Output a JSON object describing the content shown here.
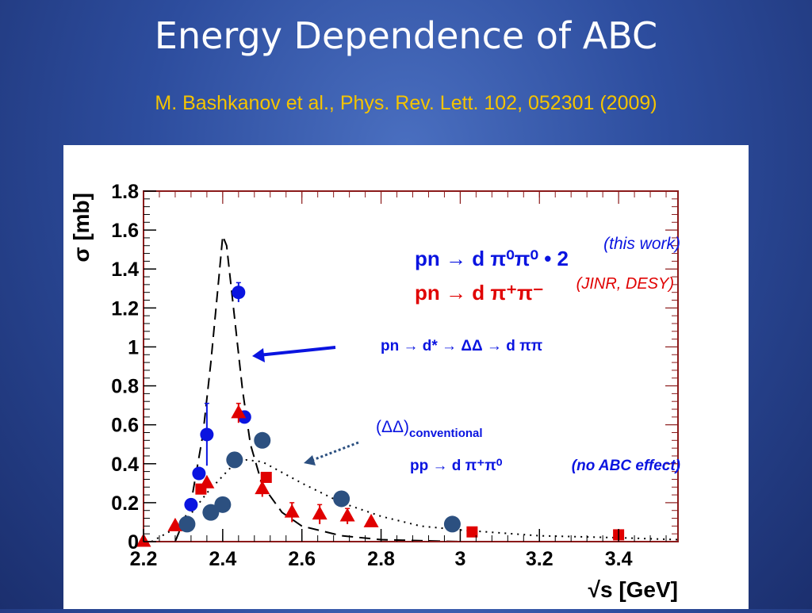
{
  "slide": {
    "title": "Energy Dependence of ABC",
    "subtitle": "M. Bashkanov et al., Phys. Rev. Lett. 102, 052301 (2009)"
  },
  "colors": {
    "background": "#2d4d9e",
    "title_text": "#ffffff",
    "subtitle_text": "#f5c400",
    "this_work": "#0a14e0",
    "jinr_desy": "#e00000",
    "conventional": "#2c5080",
    "frame": "#8b1a1a",
    "arrow": "#0a14e0",
    "dotted_arrow": "#2c5080"
  },
  "chart_data": {
    "type": "scatter",
    "xlabel": "√s [GeV]",
    "ylabel": "σ [mb]",
    "xlim": [
      2.2,
      3.55
    ],
    "ylim": [
      0,
      1.8
    ],
    "x_ticks": [
      "2.2",
      "2.4",
      "2.6",
      "2.8",
      "3",
      "3.2",
      "3.4"
    ],
    "y_ticks": [
      "0",
      "0.2",
      "0.4",
      "0.6",
      "0.8",
      "1",
      "1.2",
      "1.4",
      "1.6",
      "1.8"
    ],
    "series": [
      {
        "name": "pn → d π⁰π⁰ • 2",
        "note": "(this work)",
        "marker": "circle",
        "color": "#0a14e0",
        "points": [
          {
            "x": 2.32,
            "y": 0.19
          },
          {
            "x": 2.34,
            "y": 0.35
          },
          {
            "x": 2.36,
            "y": 0.55,
            "err": 0.16
          },
          {
            "x": 2.44,
            "y": 1.28,
            "err": 0.05
          },
          {
            "x": 2.455,
            "y": 0.64,
            "err": 0.03
          }
        ]
      },
      {
        "name": "pn → d π⁺π⁻",
        "note": "(JINR, DESY)",
        "marker": "triangle",
        "color": "#e00000",
        "points": [
          {
            "x": 2.2,
            "y": 0.0
          },
          {
            "x": 2.28,
            "y": 0.08
          },
          {
            "x": 2.36,
            "y": 0.3
          },
          {
            "x": 2.44,
            "y": 0.66,
            "err": 0.05
          },
          {
            "x": 2.5,
            "y": 0.27,
            "err": 0.04
          },
          {
            "x": 2.575,
            "y": 0.15,
            "err": 0.05
          },
          {
            "x": 2.645,
            "y": 0.14,
            "err": 0.05
          },
          {
            "x": 2.715,
            "y": 0.13,
            "err": 0.04
          },
          {
            "x": 2.775,
            "y": 0.1,
            "err": 0.02
          }
        ]
      },
      {
        "name": "pn → d π⁺π⁻ (squares)",
        "marker": "square",
        "color": "#e00000",
        "points": [
          {
            "x": 2.345,
            "y": 0.27
          },
          {
            "x": 2.51,
            "y": 0.33
          },
          {
            "x": 3.03,
            "y": 0.05
          },
          {
            "x": 3.4,
            "y": 0.035
          }
        ]
      },
      {
        "name": "pp → d π⁺π⁰",
        "note": "(no ABC effect)",
        "marker": "circle",
        "color": "#2c5080",
        "points": [
          {
            "x": 2.31,
            "y": 0.09
          },
          {
            "x": 2.37,
            "y": 0.15
          },
          {
            "x": 2.4,
            "y": 0.19
          },
          {
            "x": 2.43,
            "y": 0.42
          },
          {
            "x": 2.5,
            "y": 0.52
          },
          {
            "x": 2.7,
            "y": 0.22
          },
          {
            "x": 2.98,
            "y": 0.09
          }
        ]
      }
    ],
    "curves": [
      {
        "label": "pn → d* → ΔΔ → d ππ",
        "style": "dashed",
        "color": "#000000",
        "points": [
          [
            2.28,
            0.0
          ],
          [
            2.32,
            0.2
          ],
          [
            2.35,
            0.55
          ],
          [
            2.37,
            0.92
          ],
          [
            2.39,
            1.35
          ],
          [
            2.4,
            1.57
          ],
          [
            2.41,
            1.52
          ],
          [
            2.43,
            1.15
          ],
          [
            2.45,
            0.78
          ],
          [
            2.47,
            0.5
          ],
          [
            2.5,
            0.29
          ],
          [
            2.55,
            0.15
          ],
          [
            2.6,
            0.08
          ],
          [
            2.7,
            0.03
          ],
          [
            2.8,
            0.01
          ],
          [
            3.0,
            0.0
          ],
          [
            3.55,
            0.0
          ]
        ]
      },
      {
        "label": "(ΔΔ)conventional",
        "style": "dotted",
        "color": "#000000",
        "points": [
          [
            2.22,
            0.0
          ],
          [
            2.3,
            0.09
          ],
          [
            2.36,
            0.25
          ],
          [
            2.42,
            0.38
          ],
          [
            2.46,
            0.42
          ],
          [
            2.5,
            0.41
          ],
          [
            2.6,
            0.3
          ],
          [
            2.7,
            0.2
          ],
          [
            2.8,
            0.13
          ],
          [
            2.9,
            0.08
          ],
          [
            3.0,
            0.06
          ],
          [
            3.2,
            0.03
          ],
          [
            3.4,
            0.02
          ],
          [
            3.55,
            0.01
          ]
        ]
      }
    ],
    "annotations": {
      "legend_blue": "pn → d π⁰π⁰ • 2",
      "this_work": "(this work)",
      "legend_red": "pn → d π⁺π⁻",
      "jinr_desy": "(JINR, DESY)",
      "dstar": "pn → d* → ΔΔ → d ππ",
      "conventional_main": "(ΔΔ)",
      "conventional_sub": "conventional",
      "pp": "pp → d π⁺π⁰",
      "no_abc": "(no ABC effect)"
    }
  }
}
